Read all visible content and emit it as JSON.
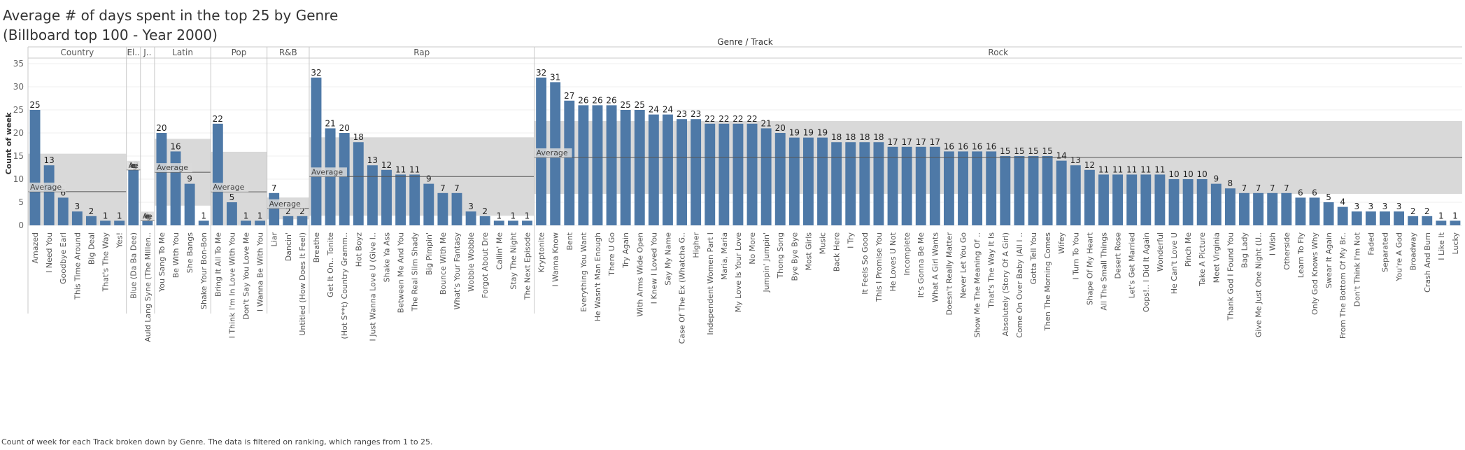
{
  "title": {
    "line1": "Average # of days spent in the top 25 by Genre",
    "line2": "(Billboard top 100 - Year 2000)"
  },
  "caption": "Count of week for each Track broken down by Genre. The data is filtered on ranking, which ranges from 1 to 25.",
  "colors": {
    "bar": "#4e79a7",
    "band": "#d9d9d9",
    "avg_line": "#555555",
    "divider": "#c8c8c8",
    "gridline": "#efefef"
  },
  "chart_data": {
    "type": "bar",
    "column_header": "Genre / Track",
    "ylabel": "Count of week",
    "ylim": [
      0,
      36
    ],
    "yticks": [
      0,
      5,
      10,
      15,
      20,
      25,
      30,
      35
    ],
    "reference_line_label": "Average",
    "grid": true,
    "genres": [
      {
        "name": "Country",
        "tracks": [
          "Amazed",
          "I Need You",
          "Goodbye Earl",
          "This Time Around",
          "Big Deal",
          "That's The Way",
          "Yes!"
        ],
        "values": [
          25,
          13,
          6,
          3,
          2,
          1,
          1
        ]
      },
      {
        "name": "El..",
        "tracks": [
          "Blue (Da Ba Dee)"
        ],
        "values": [
          12
        ]
      },
      {
        "name": "J..",
        "tracks": [
          "Auld Lang Syne (The Millen.."
        ],
        "values": [
          1
        ]
      },
      {
        "name": "Latin",
        "tracks": [
          "You Sang To Me",
          "Be With You",
          "She Bangs",
          "Shake Your Bon-Bon"
        ],
        "values": [
          20,
          16,
          9,
          1
        ]
      },
      {
        "name": "Pop",
        "tracks": [
          "Bring It All To Me",
          "I Think I'm In Love With You",
          "Don't Say You Love Me",
          "I Wanna Be With You"
        ],
        "values": [
          22,
          5,
          1,
          1
        ]
      },
      {
        "name": "R&B",
        "tracks": [
          "Liar",
          "Dancin'",
          "Untitled (How Does It Feel)"
        ],
        "values": [
          7,
          2,
          2
        ]
      },
      {
        "name": "Rap",
        "tracks": [
          "Breathe",
          "Get It On.. Tonite",
          "(Hot S**t) Country Gramm..",
          "Hot Boyz",
          "I Just Wanna Love U (Give I..",
          "Shake Ya Ass",
          "Between Me And You",
          "The Real Slim Shady",
          "Big Pimpin'",
          "Bounce With Me",
          "What's Your Fantasy",
          "Wobble Wobble",
          "Forgot About Dre",
          "Callin' Me",
          "Stay The Night",
          "The Next Episode"
        ],
        "values": [
          32,
          21,
          20,
          18,
          13,
          12,
          11,
          11,
          9,
          7,
          7,
          3,
          2,
          1,
          1,
          1
        ]
      },
      {
        "name": "Rock",
        "tracks": [
          "Kryptonite",
          "I Wanna Know",
          "Bent",
          "Everything You Want",
          "He Wasn't Man Enough",
          "There U Go",
          "Try Again",
          "With Arms Wide Open",
          "I Knew I Loved You",
          "Say My Name",
          "Case Of The Ex (Whatcha G..",
          "Higher",
          "Independent Women Part I",
          "Maria, Maria",
          "My Love Is Your Love",
          "No More",
          "Jumpin' Jumpin'",
          "Thong Song",
          "Bye Bye Bye",
          "Most Girls",
          "Music",
          "Back Here",
          "I Try",
          "It Feels So Good",
          "This I Promise You",
          "He Loves U Not",
          "Incomplete",
          "It's Gonna Be Me",
          "What A Girl Wants",
          "Doesn't Really Matter",
          "Never Let You Go",
          "Show Me The Meaning Of ..",
          "That's The Way It Is",
          "Absolutely (Story Of A Girl)",
          "Come On Over Baby (All I ..",
          "Gotta Tell You",
          "Then The Morning Comes",
          "Wifey",
          "I Turn To You",
          "Shape Of My Heart",
          "All The Small Things",
          "Desert Rose",
          "Let's Get Married",
          "Oops!.. I Did It Again",
          "Wonderful",
          "He Can't Love U",
          "Pinch Me",
          "Take A Picture",
          "Meet Virginia",
          "Thank God I Found You",
          "Bag Lady",
          "Give Me Just One Night (U..",
          "I Wish",
          "Otherside",
          "Learn To Fly",
          "Only God Knows Why",
          "Swear It Again",
          "From The Bottom Of My Br..",
          "Don't Think I'm Not",
          "Faded",
          "Separated",
          "You're A God",
          "Broadway",
          "Crash And Burn",
          "I Like It",
          "Lucky"
        ],
        "values": [
          32,
          31,
          27,
          26,
          26,
          26,
          25,
          25,
          24,
          24,
          23,
          23,
          22,
          22,
          22,
          22,
          21,
          20,
          19,
          19,
          19,
          18,
          18,
          18,
          18,
          17,
          17,
          17,
          17,
          16,
          16,
          16,
          16,
          15,
          15,
          15,
          15,
          14,
          13,
          12,
          11,
          11,
          11,
          11,
          11,
          10,
          10,
          10,
          9,
          8,
          7,
          7,
          7,
          7,
          6,
          6,
          5,
          4,
          3,
          3,
          3,
          3,
          2,
          2,
          1,
          1
        ]
      }
    ]
  }
}
